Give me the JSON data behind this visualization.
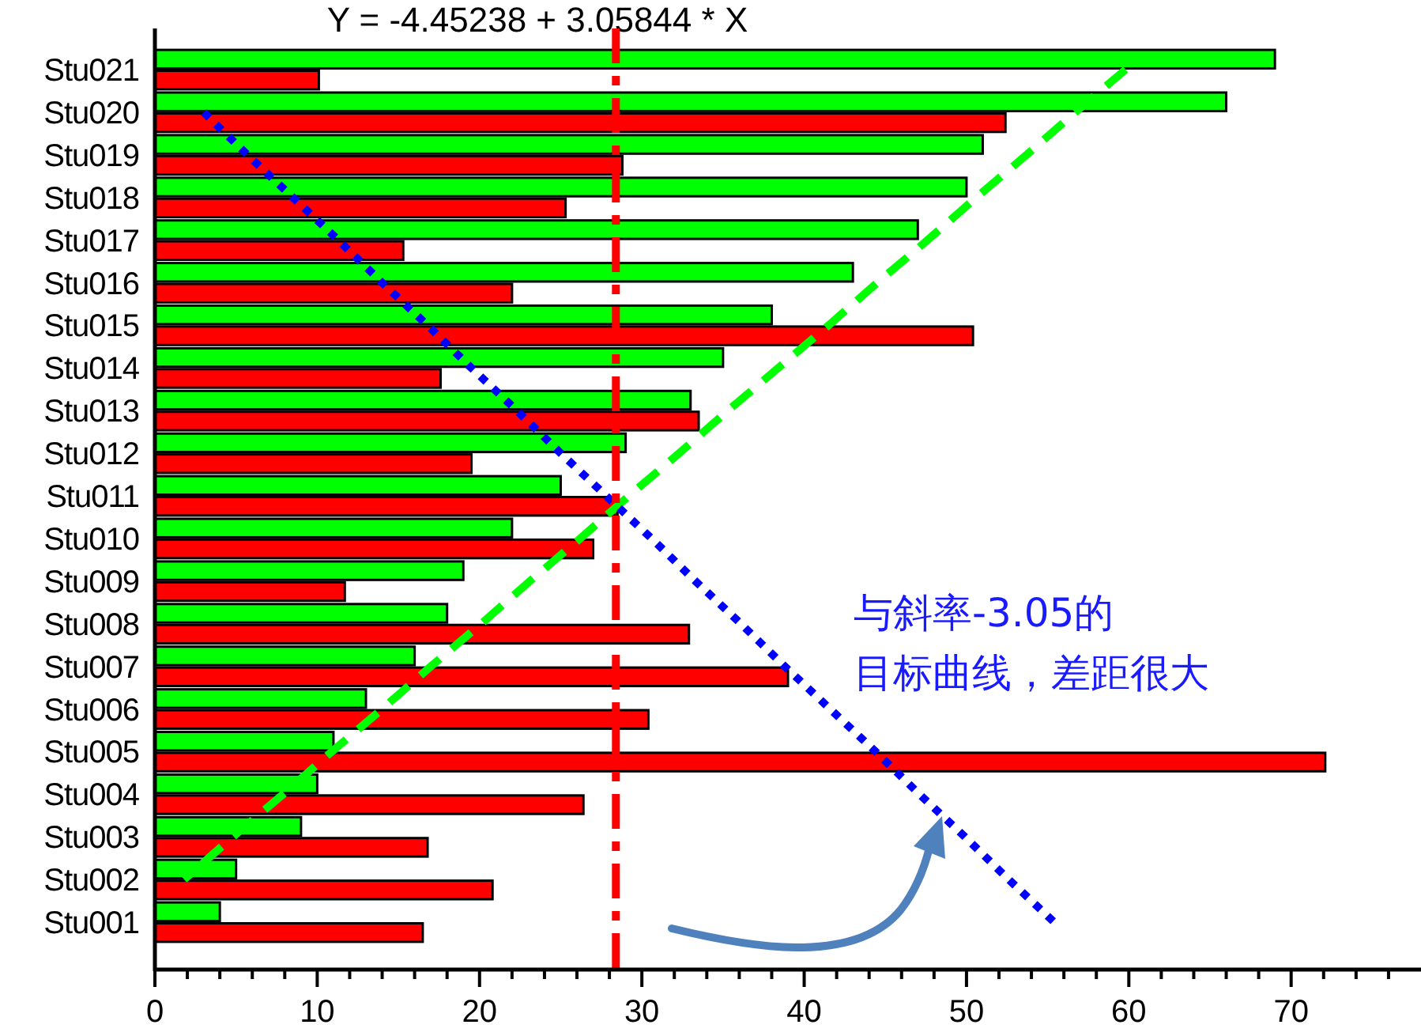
{
  "chart_data": {
    "type": "bar",
    "orientation": "horizontal",
    "title": "Y = -4.45238 + 3.05844 * X",
    "categories": [
      "Stu021",
      "Stu020",
      "Stu019",
      "Stu018",
      "Stu017",
      "Stu016",
      "Stu015",
      "Stu014",
      "Stu013",
      "Stu012",
      "Stu011",
      "Stu010",
      "Stu009",
      "Stu008",
      "Stu007",
      "Stu006",
      "Stu005",
      "Stu004",
      "Stu003",
      "Stu002",
      "Stu001"
    ],
    "series": [
      {
        "color": "#00ff00",
        "values": [
          69,
          66,
          51,
          50,
          47,
          43,
          38,
          35,
          33,
          29,
          25,
          22,
          19,
          18,
          16,
          13,
          11,
          10,
          9,
          5,
          4
        ]
      },
      {
        "color": "#ff0000",
        "values": [
          10.1,
          52.4,
          28.8,
          25.3,
          15.3,
          22.0,
          50.4,
          17.6,
          33.5,
          19.5,
          28.5,
          27.0,
          11.7,
          32.9,
          39.0,
          30.4,
          72.1,
          26.4,
          16.8,
          20.8,
          16.5
        ]
      },
      {
        "type": "line",
        "color": "#00ff00",
        "line_style": "dashed",
        "values": [
          59.8,
          56.7,
          53.7,
          50.6,
          47.6,
          44.5,
          41.5,
          38.4,
          35.3,
          32.3,
          29.2,
          26.2,
          23.1,
          20.1,
          17.0,
          14.0,
          10.9,
          7.9,
          4.8,
          1.8,
          null
        ]
      },
      {
        "type": "line",
        "color": "#0000ff",
        "line_style": "dotted",
        "values": [
          null,
          3.0,
          5.7,
          8.5,
          11.3,
          14.0,
          16.8,
          19.5,
          22.3,
          25.0,
          27.8,
          30.6,
          33.3,
          36.1,
          38.8,
          41.6,
          44.4,
          47.1,
          49.9,
          52.6,
          55.4
        ]
      }
    ],
    "ref_lines": [
      {
        "axis": "x",
        "value": 28.4,
        "color": "#ff0000",
        "line_style": "dashed"
      }
    ],
    "xlim": [
      0,
      78
    ],
    "xticks": [
      0,
      {
        "value": 2,
        "label": null
      },
      {
        "value": 4,
        "label": null
      },
      {
        "value": 6,
        "label": null
      },
      {
        "value": 8,
        "label": null
      },
      10,
      {
        "value": 12,
        "label": null
      },
      {
        "value": 14,
        "label": null
      },
      {
        "value": 16,
        "label": null
      },
      {
        "value": 18,
        "label": null
      },
      20,
      {
        "value": 22,
        "label": null
      },
      {
        "value": 24,
        "label": null
      },
      {
        "value": 26,
        "label": null
      },
      {
        "value": 28,
        "label": null
      },
      30,
      {
        "value": 32,
        "label": null
      },
      {
        "value": 34,
        "label": null
      },
      {
        "value": 36,
        "label": null
      },
      {
        "value": 38,
        "label": null
      },
      40,
      {
        "value": 42,
        "label": null
      },
      {
        "value": 44,
        "label": null
      },
      {
        "value": 46,
        "label": null
      },
      {
        "value": 48,
        "label": null
      },
      50,
      {
        "value": 52,
        "label": null
      },
      {
        "value": 54,
        "label": null
      },
      {
        "value": 56,
        "label": null
      },
      {
        "value": 58,
        "label": null
      },
      60,
      {
        "value": 62,
        "label": null
      },
      {
        "value": 64,
        "label": null
      },
      {
        "value": 66,
        "label": null
      },
      {
        "value": 68,
        "label": null
      },
      70,
      {
        "value": 72,
        "label": null
      },
      {
        "value": 74,
        "label": null
      },
      {
        "value": 76,
        "label": null
      }
    ],
    "annotations": [
      "与斜率-3.05的",
      "目标曲线，差距很大"
    ]
  }
}
